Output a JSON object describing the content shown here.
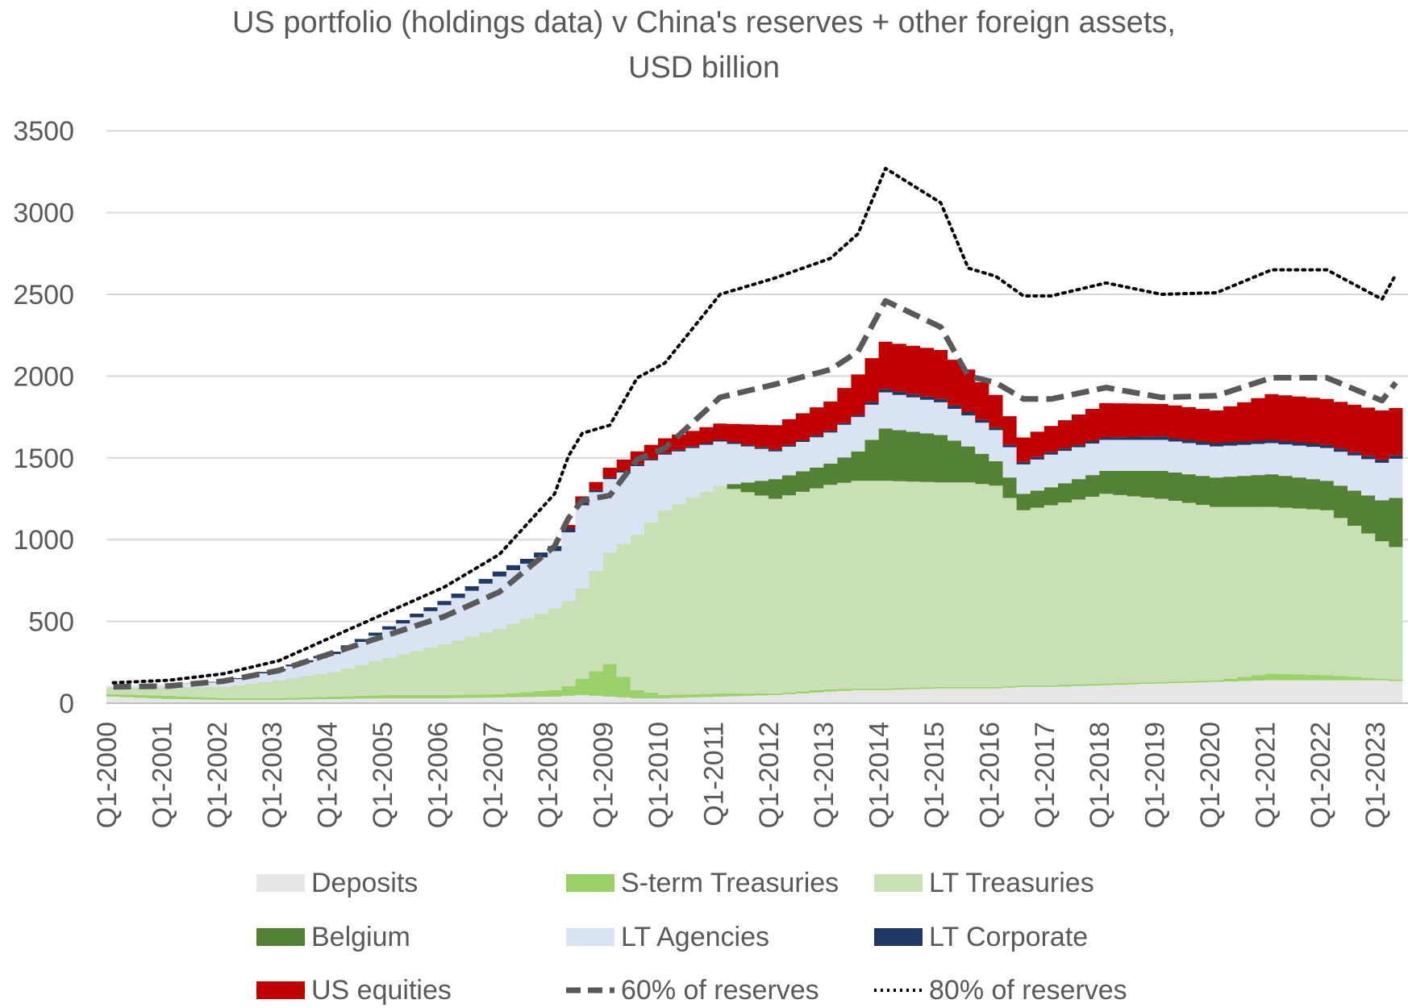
{
  "chart_data": {
    "type": "area",
    "title": "US portfolio (holdings data) v China's reserves + other foreign assets,",
    "subtitle": "USD billion",
    "xlabel": "",
    "ylabel": "",
    "ylim": [
      0,
      3500
    ],
    "yticks": [
      0,
      500,
      1000,
      1500,
      2000,
      2500,
      3000,
      3500
    ],
    "x_start": "Q1-2000",
    "x_end": "Q2-2023",
    "xtick_labels": [
      "Q1-2000",
      "Q1-2001",
      "Q1-2002",
      "Q1-2003",
      "Q1-2004",
      "Q1-2005",
      "Q1-2006",
      "Q1-2007",
      "Q1-2008",
      "Q1-2009",
      "Q1-2010",
      "Q1-2011",
      "Q1-2012",
      "Q1-2013",
      "Q1-2014",
      "Q1-2015",
      "Q1-2016",
      "Q1-2017",
      "Q1-2018",
      "Q1-2019",
      "Q1-2020",
      "Q1-2021",
      "Q1-2022",
      "Q1-2023"
    ],
    "grid": true,
    "legend_position": "bottom",
    "stacked_anchors": {
      "note_quarters": [
        0,
        4,
        8,
        12,
        16,
        20,
        24,
        28,
        32,
        33,
        34,
        36,
        38,
        40,
        44,
        48,
        52,
        54,
        56,
        60,
        62,
        64,
        66,
        68,
        72,
        76,
        80,
        84,
        88,
        92,
        93
      ],
      "Deposits": [
        40,
        25,
        20,
        20,
        25,
        30,
        30,
        35,
        40,
        45,
        50,
        40,
        30,
        30,
        40,
        50,
        70,
        80,
        80,
        90,
        90,
        90,
        100,
        100,
        110,
        120,
        130,
        140,
        140,
        140,
        135
      ],
      "S-term Treasuries": [
        15,
        20,
        10,
        10,
        15,
        20,
        20,
        20,
        40,
        60,
        100,
        200,
        50,
        20,
        20,
        10,
        15,
        10,
        10,
        10,
        10,
        10,
        10,
        10,
        10,
        10,
        10,
        40,
        30,
        10,
        10
      ],
      "LT Treasuries": [
        40,
        55,
        70,
        110,
        150,
        230,
        310,
        400,
        500,
        520,
        550,
        680,
        950,
        1130,
        1270,
        1190,
        1250,
        1270,
        1270,
        1250,
        1250,
        1230,
        1070,
        1100,
        1160,
        1120,
        1060,
        1020,
        1010,
        840,
        810
      ],
      "Belgium": [
        0,
        0,
        0,
        0,
        0,
        0,
        0,
        0,
        0,
        0,
        0,
        0,
        0,
        0,
        0,
        120,
        130,
        180,
        320,
        290,
        220,
        150,
        100,
        110,
        140,
        170,
        180,
        200,
        180,
        250,
        300
      ],
      "LT Agencies": [
        10,
        15,
        30,
        60,
        110,
        170,
        240,
        320,
        350,
        420,
        510,
        450,
        420,
        340,
        270,
        170,
        190,
        210,
        220,
        200,
        190,
        190,
        180,
        200,
        190,
        190,
        190,
        190,
        200,
        230,
        240
      ],
      "LT Corporate": [
        0,
        0,
        5,
        10,
        15,
        20,
        25,
        30,
        30,
        25,
        15,
        10,
        10,
        10,
        10,
        10,
        10,
        10,
        20,
        20,
        20,
        15,
        15,
        15,
        15,
        20,
        20,
        20,
        20,
        20,
        20
      ],
      "US equities": [
        0,
        0,
        0,
        0,
        0,
        0,
        0,
        0,
        0,
        20,
        40,
        60,
        80,
        90,
        100,
        150,
        180,
        250,
        290,
        300,
        260,
        200,
        150,
        160,
        210,
        200,
        200,
        280,
        280,
        300,
        290
      ],
      "60% of reserves": [
        100,
        105,
        135,
        200,
        310,
        420,
        530,
        680,
        960,
        1130,
        1240,
        1270,
        1490,
        1560,
        1870,
        1950,
        2040,
        2150,
        2460,
        2300,
        2000,
        1960,
        1860,
        1860,
        1930,
        1870,
        1880,
        1990,
        1990,
        1850,
        1960
      ],
      "80% of reserves": [
        125,
        140,
        180,
        260,
        410,
        560,
        710,
        910,
        1280,
        1510,
        1650,
        1700,
        1990,
        2080,
        2500,
        2600,
        2720,
        2870,
        3270,
        3060,
        2660,
        2610,
        2490,
        2490,
        2570,
        2500,
        2510,
        2650,
        2650,
        2470,
        2620
      ]
    },
    "series": [
      {
        "name": "Deposits",
        "color": "#e7e6e6",
        "kind": "stack"
      },
      {
        "name": "S-term Treasuries",
        "color": "#9bd16a",
        "kind": "stack"
      },
      {
        "name": "LT Treasuries",
        "color": "#c9dfb5",
        "kind": "stack"
      },
      {
        "name": "Belgium",
        "color": "#548235",
        "kind": "stack"
      },
      {
        "name": "LT Agencies",
        "color": "#dae3f3",
        "kind": "stack"
      },
      {
        "name": "LT Corporate",
        "color": "#203864",
        "kind": "stack"
      },
      {
        "name": "US equities",
        "color": "#c00000",
        "kind": "stack"
      },
      {
        "name": "60% of reserves",
        "color": "#595959",
        "kind": "dashed-line"
      },
      {
        "name": "80% of reserves",
        "color": "#000000",
        "kind": "dotted-line"
      }
    ]
  },
  "legend": {
    "items": [
      {
        "label": "Deposits"
      },
      {
        "label": "S-term Treasuries"
      },
      {
        "label": "LT Treasuries"
      },
      {
        "label": "Belgium"
      },
      {
        "label": "LT Agencies"
      },
      {
        "label": "LT Corporate"
      },
      {
        "label": "US equities"
      },
      {
        "label": "60% of reserves"
      },
      {
        "label": "80% of reserves"
      }
    ]
  }
}
